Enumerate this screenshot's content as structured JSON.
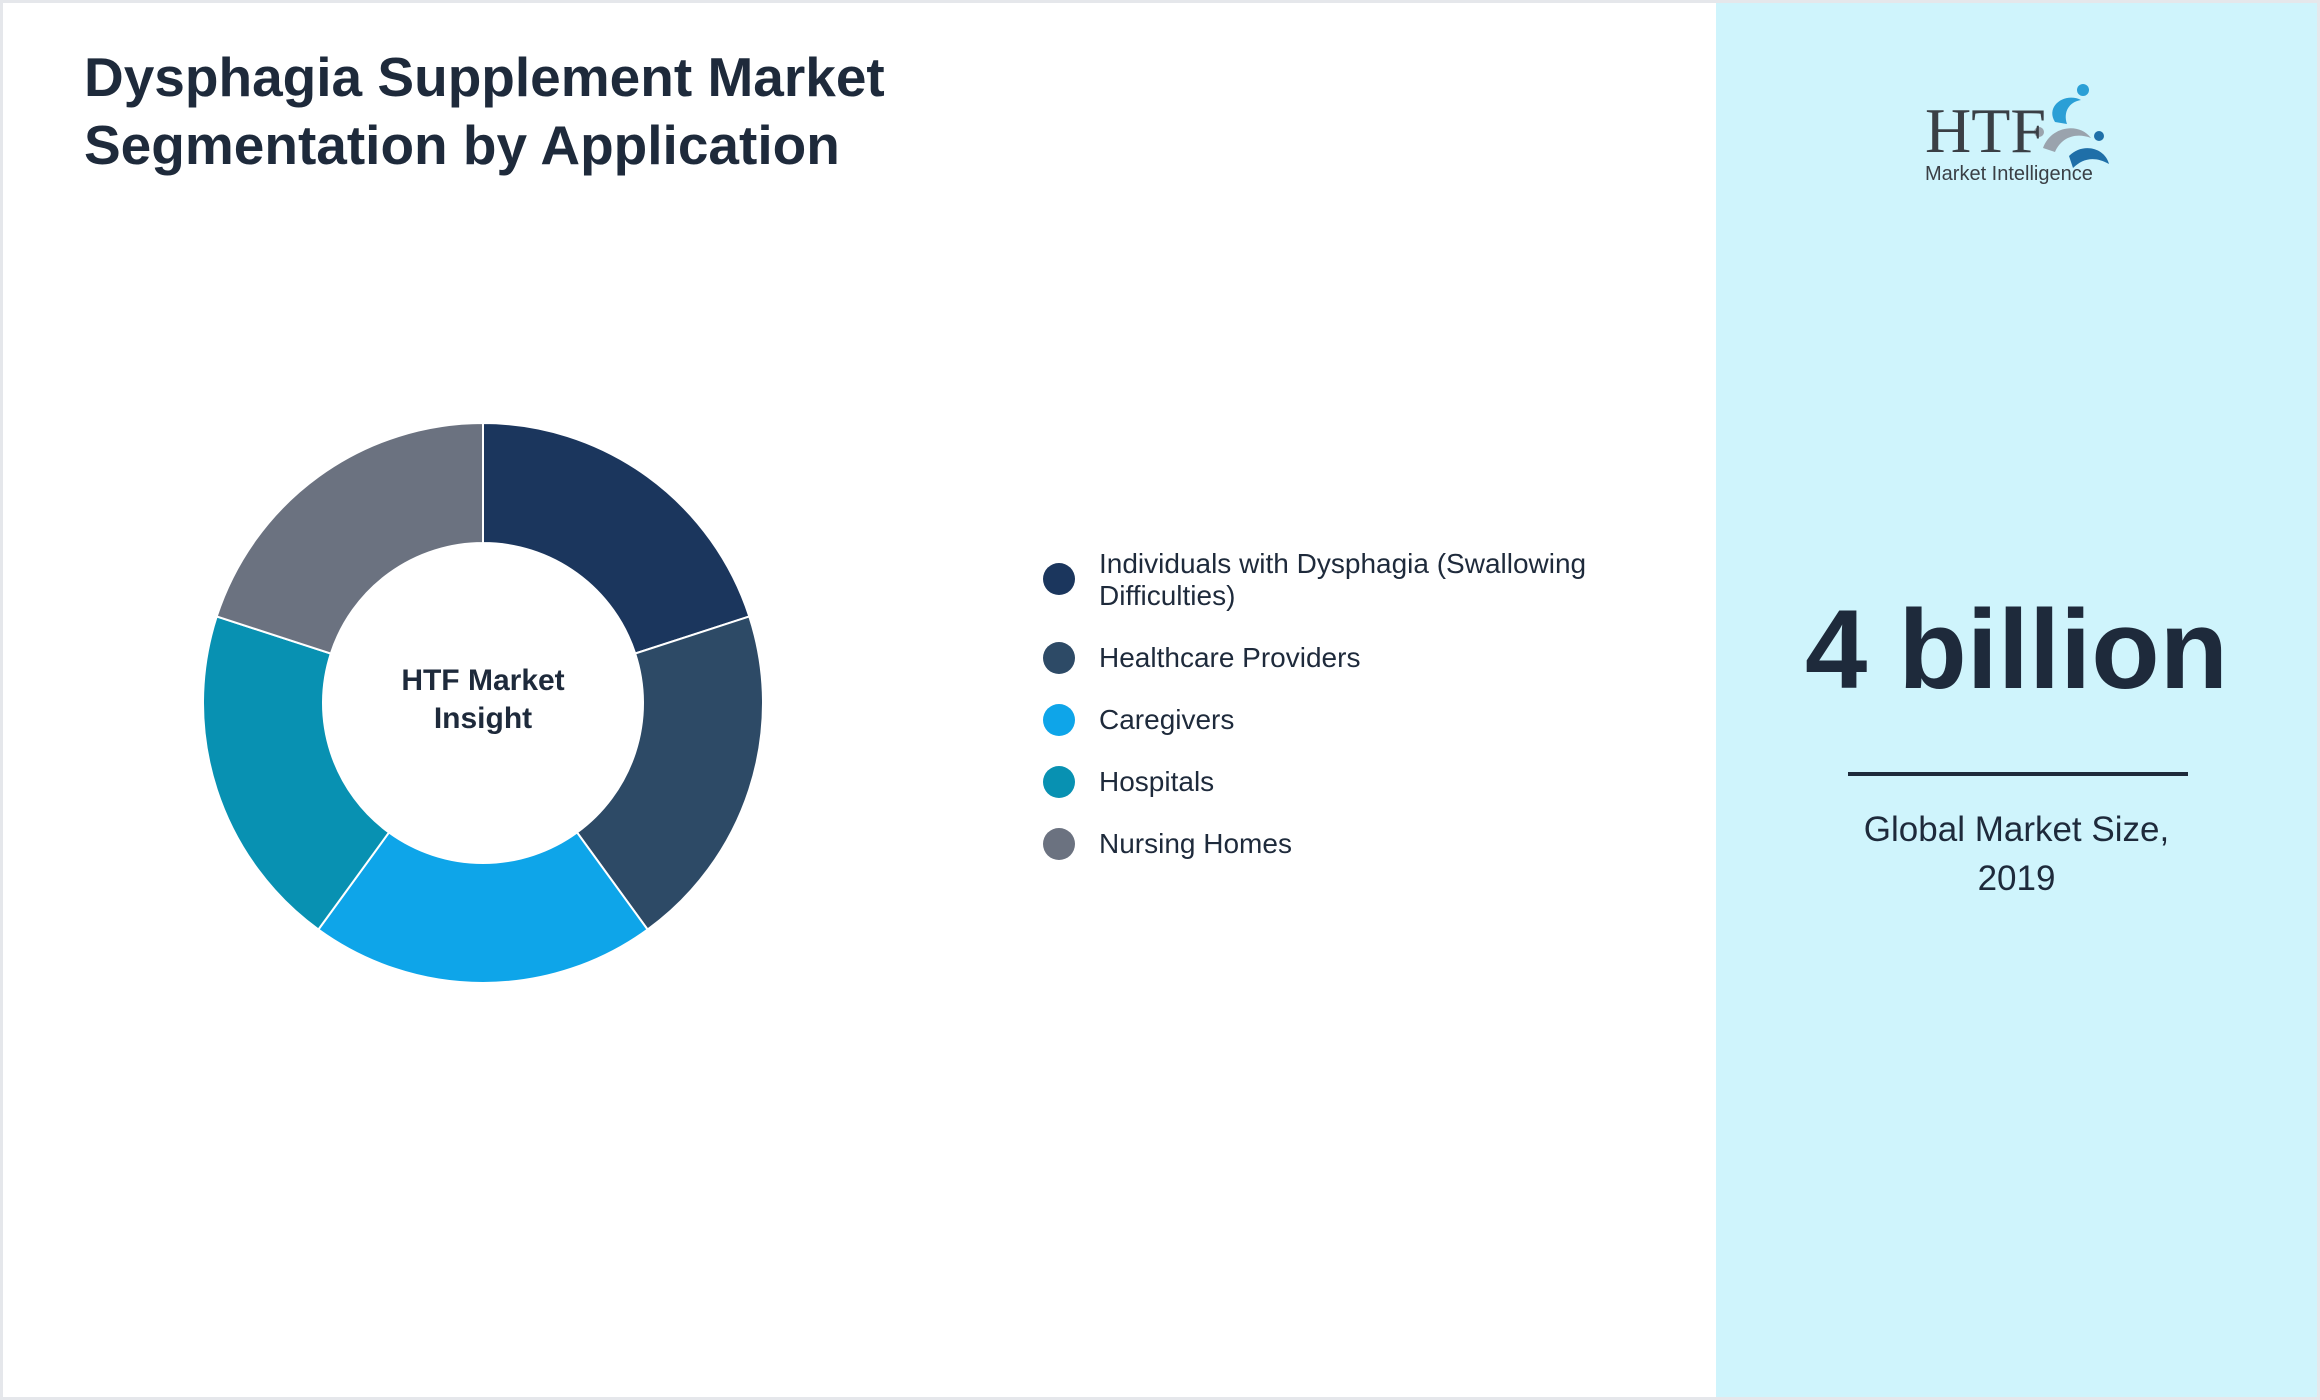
{
  "title": {
    "line1": "Dysphagia Supplement Market",
    "line2": "Segmentation by Application"
  },
  "donut": {
    "center_line1": "HTF Market",
    "center_line2": "Insight"
  },
  "chart_data": {
    "type": "pie",
    "variant": "donut",
    "title": "Dysphagia Supplement Market Segmentation by Application",
    "categories": [
      "Individuals with Dysphagia (Swallowing Difficulties)",
      "Healthcare Providers",
      "Caregivers",
      "Hospitals",
      "Nursing Homes"
    ],
    "values": [
      20,
      20,
      20,
      20,
      20
    ],
    "colors": [
      "#1b365d",
      "#2d4a66",
      "#0ea5e9",
      "#0891b2",
      "#6b7280"
    ],
    "legend_position": "right",
    "start_angle_deg": 0,
    "direction": "clockwise"
  },
  "legend": {
    "items": [
      {
        "label_line1": "Individuals with Dysphagia (Swallowing",
        "label_line2": "Difficulties)",
        "color": "#1b365d"
      },
      {
        "label_line1": "Healthcare Providers",
        "color": "#2d4a66"
      },
      {
        "label_line1": "Caregivers",
        "color": "#0ea5e9"
      },
      {
        "label_line1": "Hospitals",
        "color": "#0891b2"
      },
      {
        "label_line1": "Nursing Homes",
        "color": "#6b7280"
      }
    ]
  },
  "logo": {
    "wordmark": "HTF",
    "tagline": "Market Intelligence",
    "icon": "htf-logo-icon"
  },
  "market_size": {
    "value": "4 billion",
    "caption_line1": "Global Market Size,",
    "caption_line2": "2019"
  },
  "colors": {
    "text": "#1e2a3b",
    "right_panel_bg": "#cff4fc",
    "page_bg": "#ffffff"
  }
}
